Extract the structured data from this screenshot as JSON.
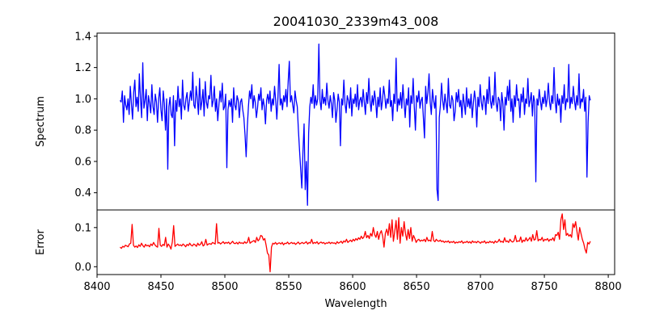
{
  "chart_data": [
    {
      "type": "line",
      "title": "20041030_2339m43_008",
      "xlabel": "",
      "ylabel": "Spectrum",
      "xlim": [
        8400,
        8805
      ],
      "ylim": [
        0.29,
        1.42
      ],
      "x_ticks": [
        8400,
        8450,
        8500,
        8550,
        8600,
        8650,
        8700,
        8750,
        8800
      ],
      "y_ticks": [
        0.4,
        0.6,
        0.8,
        1.0,
        1.2,
        1.4
      ],
      "y_tick_labels": [
        "0.4",
        "0.6",
        "0.8",
        "1.0",
        "1.2",
        "1.4"
      ],
      "grid": false,
      "colors": {
        "line": "#0000ff"
      },
      "series": [
        {
          "x_start": 8418,
          "x_end": 8786,
          "values": [
            0.99,
            0.98,
            1.05,
            0.85,
            1.02,
            0.96,
            0.93,
            1.0,
            0.9,
            1.08,
            0.97,
            0.87,
            1.04,
            1.12,
            0.95,
            1.01,
            0.92,
            1.16,
            1.0,
            0.88,
            1.23,
            0.94,
            0.99,
            1.06,
            0.86,
            1.02,
            0.97,
            0.91,
            1.09,
            0.95,
            0.9,
            1.03,
            0.98,
            0.85,
            1.0,
            1.07,
            0.93,
            0.86,
            1.05,
            0.97,
            0.8,
            1.0,
            0.55,
            0.95,
            1.01,
            0.9,
            0.88,
            1.02,
            0.7,
            0.99,
            0.92,
            1.08,
            0.95,
            1.0,
            0.87,
            1.12,
            0.96,
            0.93,
            1.0,
            1.04,
            0.92,
            0.98,
            1.05,
            0.99,
            1.17,
            0.96,
            0.94,
            1.08,
            1.0,
            0.9,
            1.13,
            0.93,
            0.98,
            1.06,
            0.89,
            1.11,
            0.98,
            0.94,
            1.02,
            1.0,
            1.15,
            0.95,
            0.99,
            1.08,
            0.92,
            1.0,
            0.86,
            0.96,
            1.05,
            0.98,
            1.1,
            0.93,
            0.95,
            1.03,
            0.56,
            0.93,
            0.99,
            0.95,
            1.0,
            0.85,
            1.07,
            0.96,
            0.93,
            1.02,
            0.99,
            0.88,
            0.98,
            1.0,
            0.93,
            0.88,
            0.77,
            0.63,
            0.82,
            0.95,
            1.05,
            1.0,
            1.09,
            0.94,
            1.02,
            0.98,
            0.88,
            0.94,
            1.03,
            0.99,
            1.07,
            0.93,
            1.0,
            0.95,
            0.84,
            0.99,
            1.03,
            0.97,
            1.05,
            0.92,
            1.0,
            0.96,
            1.08,
            0.99,
            0.87,
            1.01,
            1.22,
            0.96,
            1.0,
            0.93,
            1.02,
            0.98,
            1.06,
            0.95,
            1.11,
            1.24,
            0.98,
            1.02,
            0.96,
            0.91,
            1.05,
            0.99,
            0.95,
            0.8,
            0.67,
            0.55,
            0.43,
            0.66,
            0.84,
            0.42,
            0.6,
            0.32,
            0.78,
            0.95,
            1.01,
            0.97,
            1.09,
            0.94,
            1.02,
            0.96,
            1.0,
            1.35,
            0.99,
            0.93,
            1.06,
            0.97,
            1.01,
            0.96,
            1.1,
            0.99,
            0.94,
            1.02,
            0.97,
            0.88,
            1.04,
            0.99,
            0.85,
            0.93,
            1.03,
            0.98,
            0.7,
            1.0,
            0.96,
            1.12,
            0.97,
            0.91,
            1.02,
            0.99,
            0.94,
            1.07,
            0.89,
            1.0,
            0.97,
            1.03,
            0.95,
            1.09,
            0.93,
            0.99,
            1.01,
            0.95,
            1.06,
            0.98,
            0.9,
            1.04,
            0.97,
            1.13,
            0.99,
            0.92,
            1.02,
            0.96,
            1.05,
            0.99,
            0.88,
            1.01,
            0.95,
            1.07,
            0.93,
            0.99,
            1.08,
            1.02,
            0.94,
            1.0,
            0.97,
            1.12,
            0.95,
            0.99,
            0.86,
            1.03,
            0.97,
            1.26,
            0.92,
            1.0,
            0.96,
            1.04,
            0.94,
            1.09,
            0.98,
            0.88,
            1.0,
            0.96,
            1.07,
            0.82,
            1.02,
            0.97,
            1.13,
            0.95,
            0.8,
            1.02,
            0.98,
            1.05,
            0.94,
            0.99,
            1.01,
            0.88,
            0.75,
            1.08,
            0.97,
            1.04,
            1.16,
            0.98,
            0.9,
            1.06,
            0.99,
            0.94,
            1.02,
            0.42,
            0.35,
            0.88,
            0.96,
            1.1,
            0.99,
            0.93,
            1.03,
            0.97,
            0.91,
            1.13,
            0.96,
            0.94,
            1.02,
            0.99,
            0.86,
            0.92,
            1.04,
            0.98,
            1.06,
            0.95,
            0.99,
            0.88,
            1.03,
            0.97,
            0.9,
            1.07,
            0.95,
            1.0,
            0.94,
            1.03,
            0.88,
            0.97,
            1.05,
            0.99,
            0.82,
            1.01,
            0.95,
            1.09,
            0.98,
            0.93,
            1.02,
            1.0,
            0.9,
            1.06,
            0.97,
            1.14,
            0.99,
            0.94,
            1.02,
            0.96,
            1.17,
            0.98,
            0.92,
            1.01,
            0.99,
            0.86,
            1.04,
            0.97,
            0.8,
            1.01,
            0.96,
            1.08,
            0.99,
            1.12,
            0.92,
            1.0,
            0.85,
            1.02,
            0.95,
            1.09,
            0.99,
            1.0,
            0.88,
            1.03,
            0.98,
            1.07,
            0.9,
            1.0,
            0.97,
            1.13,
            0.95,
            0.99,
            1.04,
            0.89,
            1.02,
            0.98,
            0.47,
            1.0,
            0.96,
            1.06,
            0.99,
            0.93,
            1.01,
            0.97,
            1.05,
            0.95,
            1.0,
            1.1,
            0.98,
            0.93,
            1.02,
            0.97,
            1.2,
            0.99,
            0.91,
            1.03,
            0.96,
            1.0,
            0.85,
            1.02,
            0.97,
            1.09,
            0.93,
            1.0,
            0.98,
            1.22,
            0.94,
            1.01,
            0.97,
            1.08,
            0.99,
            0.93,
            1.02,
            0.96,
            1.16,
            0.94,
            1.0,
            0.98,
            1.06,
            0.92,
            1.01,
            0.5,
            0.85,
            1.02,
            0.99
          ]
        }
      ]
    },
    {
      "type": "line",
      "title": "",
      "xlabel": "Wavelength",
      "ylabel": "Error",
      "xlim": [
        8400,
        8805
      ],
      "ylim": [
        -0.02,
        0.145
      ],
      "x_ticks": [
        8400,
        8450,
        8500,
        8550,
        8600,
        8650,
        8700,
        8750,
        8800
      ],
      "y_ticks": [
        0.0,
        0.1
      ],
      "y_tick_labels": [
        "0.0",
        "0.1"
      ],
      "grid": false,
      "colors": {
        "line": "#ff0000"
      },
      "series": [
        {
          "x_start": 8418,
          "x_end": 8786,
          "values": [
            0.05,
            0.047,
            0.052,
            0.05,
            0.055,
            0.053,
            0.051,
            0.058,
            0.06,
            0.108,
            0.055,
            0.05,
            0.053,
            0.049,
            0.056,
            0.052,
            0.06,
            0.054,
            0.05,
            0.057,
            0.053,
            0.055,
            0.051,
            0.058,
            0.054,
            0.062,
            0.056,
            0.052,
            0.05,
            0.098,
            0.055,
            0.052,
            0.057,
            0.054,
            0.075,
            0.05,
            0.058,
            0.053,
            0.045,
            0.063,
            0.105,
            0.052,
            0.055,
            0.058,
            0.054,
            0.056,
            0.053,
            0.058,
            0.055,
            0.051,
            0.057,
            0.054,
            0.06,
            0.055,
            0.053,
            0.058,
            0.056,
            0.052,
            0.06,
            0.055,
            0.057,
            0.064,
            0.053,
            0.056,
            0.07,
            0.055,
            0.058,
            0.059,
            0.057,
            0.062,
            0.06,
            0.058,
            0.11,
            0.06,
            0.062,
            0.058,
            0.061,
            0.064,
            0.059,
            0.062,
            0.06,
            0.063,
            0.058,
            0.061,
            0.065,
            0.06,
            0.059,
            0.062,
            0.058,
            0.063,
            0.06,
            0.061,
            0.059,
            0.064,
            0.06,
            0.062,
            0.075,
            0.06,
            0.063,
            0.065,
            0.067,
            0.062,
            0.075,
            0.066,
            0.07,
            0.08,
            0.078,
            0.068,
            0.072,
            0.055,
            0.035,
            0.03,
            -0.013,
            0.05,
            0.06,
            0.058,
            0.062,
            0.057,
            0.06,
            0.061,
            0.058,
            0.062,
            0.056,
            0.06,
            0.059,
            0.063,
            0.058,
            0.06,
            0.062,
            0.059,
            0.061,
            0.057,
            0.06,
            0.063,
            0.058,
            0.06,
            0.062,
            0.059,
            0.061,
            0.064,
            0.058,
            0.062,
            0.06,
            0.07,
            0.059,
            0.062,
            0.06,
            0.064,
            0.058,
            0.061,
            0.063,
            0.06,
            0.062,
            0.058,
            0.061,
            0.06,
            0.063,
            0.059,
            0.062,
            0.06,
            0.061,
            0.058,
            0.064,
            0.06,
            0.062,
            0.065,
            0.06,
            0.066,
            0.063,
            0.07,
            0.062,
            0.065,
            0.068,
            0.064,
            0.07,
            0.066,
            0.072,
            0.068,
            0.074,
            0.07,
            0.078,
            0.072,
            0.076,
            0.09,
            0.074,
            0.08,
            0.072,
            0.085,
            0.078,
            0.1,
            0.082,
            0.075,
            0.09,
            0.07,
            0.085,
            0.092,
            0.078,
            0.05,
            0.085,
            0.096,
            0.08,
            0.11,
            0.075,
            0.12,
            0.065,
            0.09,
            0.118,
            0.07,
            0.125,
            0.06,
            0.1,
            0.078,
            0.115,
            0.085,
            0.068,
            0.095,
            0.072,
            0.1,
            0.065,
            0.08,
            0.072,
            0.062,
            0.068,
            0.07,
            0.065,
            0.068,
            0.066,
            0.07,
            0.064,
            0.075,
            0.066,
            0.068,
            0.065,
            0.09,
            0.067,
            0.064,
            0.07,
            0.066,
            0.065,
            0.068,
            0.064,
            0.066,
            0.062,
            0.065,
            0.063,
            0.066,
            0.061,
            0.064,
            0.062,
            0.065,
            0.06,
            0.063,
            0.061,
            0.064,
            0.062,
            0.066,
            0.06,
            0.063,
            0.062,
            0.065,
            0.061,
            0.064,
            0.06,
            0.066,
            0.062,
            0.064,
            0.061,
            0.065,
            0.063,
            0.06,
            0.064,
            0.062,
            0.066,
            0.06,
            0.063,
            0.061,
            0.065,
            0.062,
            0.064,
            0.06,
            0.066,
            0.062,
            0.064,
            0.07,
            0.063,
            0.065,
            0.062,
            0.074,
            0.064,
            0.066,
            0.062,
            0.07,
            0.065,
            0.063,
            0.066,
            0.08,
            0.064,
            0.066,
            0.065,
            0.076,
            0.062,
            0.068,
            0.065,
            0.074,
            0.066,
            0.07,
            0.075,
            0.065,
            0.082,
            0.068,
            0.07,
            0.092,
            0.066,
            0.07,
            0.068,
            0.075,
            0.065,
            0.07,
            0.068,
            0.072,
            0.065,
            0.07,
            0.068,
            0.074,
            0.066,
            0.082,
            0.08,
            0.088,
            0.07,
            0.12,
            0.135,
            0.095,
            0.12,
            0.08,
            0.085,
            0.078,
            0.082,
            0.075,
            0.11,
            0.1,
            0.115,
            0.09,
            0.068,
            0.1,
            0.085,
            0.07,
            0.06,
            0.045,
            0.035,
            0.062,
            0.058,
            0.065
          ]
        }
      ]
    }
  ]
}
